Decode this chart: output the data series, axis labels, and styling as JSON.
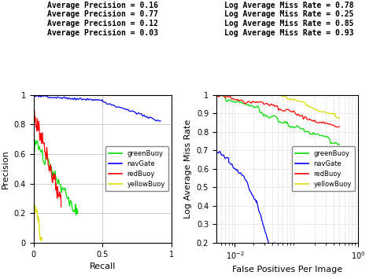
{
  "left_title_lines": [
    "Average Precision = 0.16",
    "Average Precision = 0.77",
    "Average Precision = 0.12",
    "Average Precision = 0.03"
  ],
  "right_title_lines": [
    "Log Average Miss Rate = 0.78",
    "Log Average Miss Rate = 0.25",
    "Log Average Miss Rate = 0.85",
    "Log Average Miss Rate = 0.93"
  ],
  "colors": {
    "greenBuoy": "#00dd00",
    "navGate": "#0000ff",
    "redBuoy": "#ff0000",
    "yellowBuoy": "#dddd00"
  },
  "legend_labels": [
    "greenBuoy",
    "navGate",
    "redBuoy",
    "yellowBuoy"
  ],
  "left_xlabel": "Recall",
  "left_ylabel": "Precision",
  "right_xlabel": "False Positives Per Image",
  "right_ylabel": "Log Average Miss Rate",
  "background_color": "#ffffff",
  "grid_color": "#bbbbbb"
}
